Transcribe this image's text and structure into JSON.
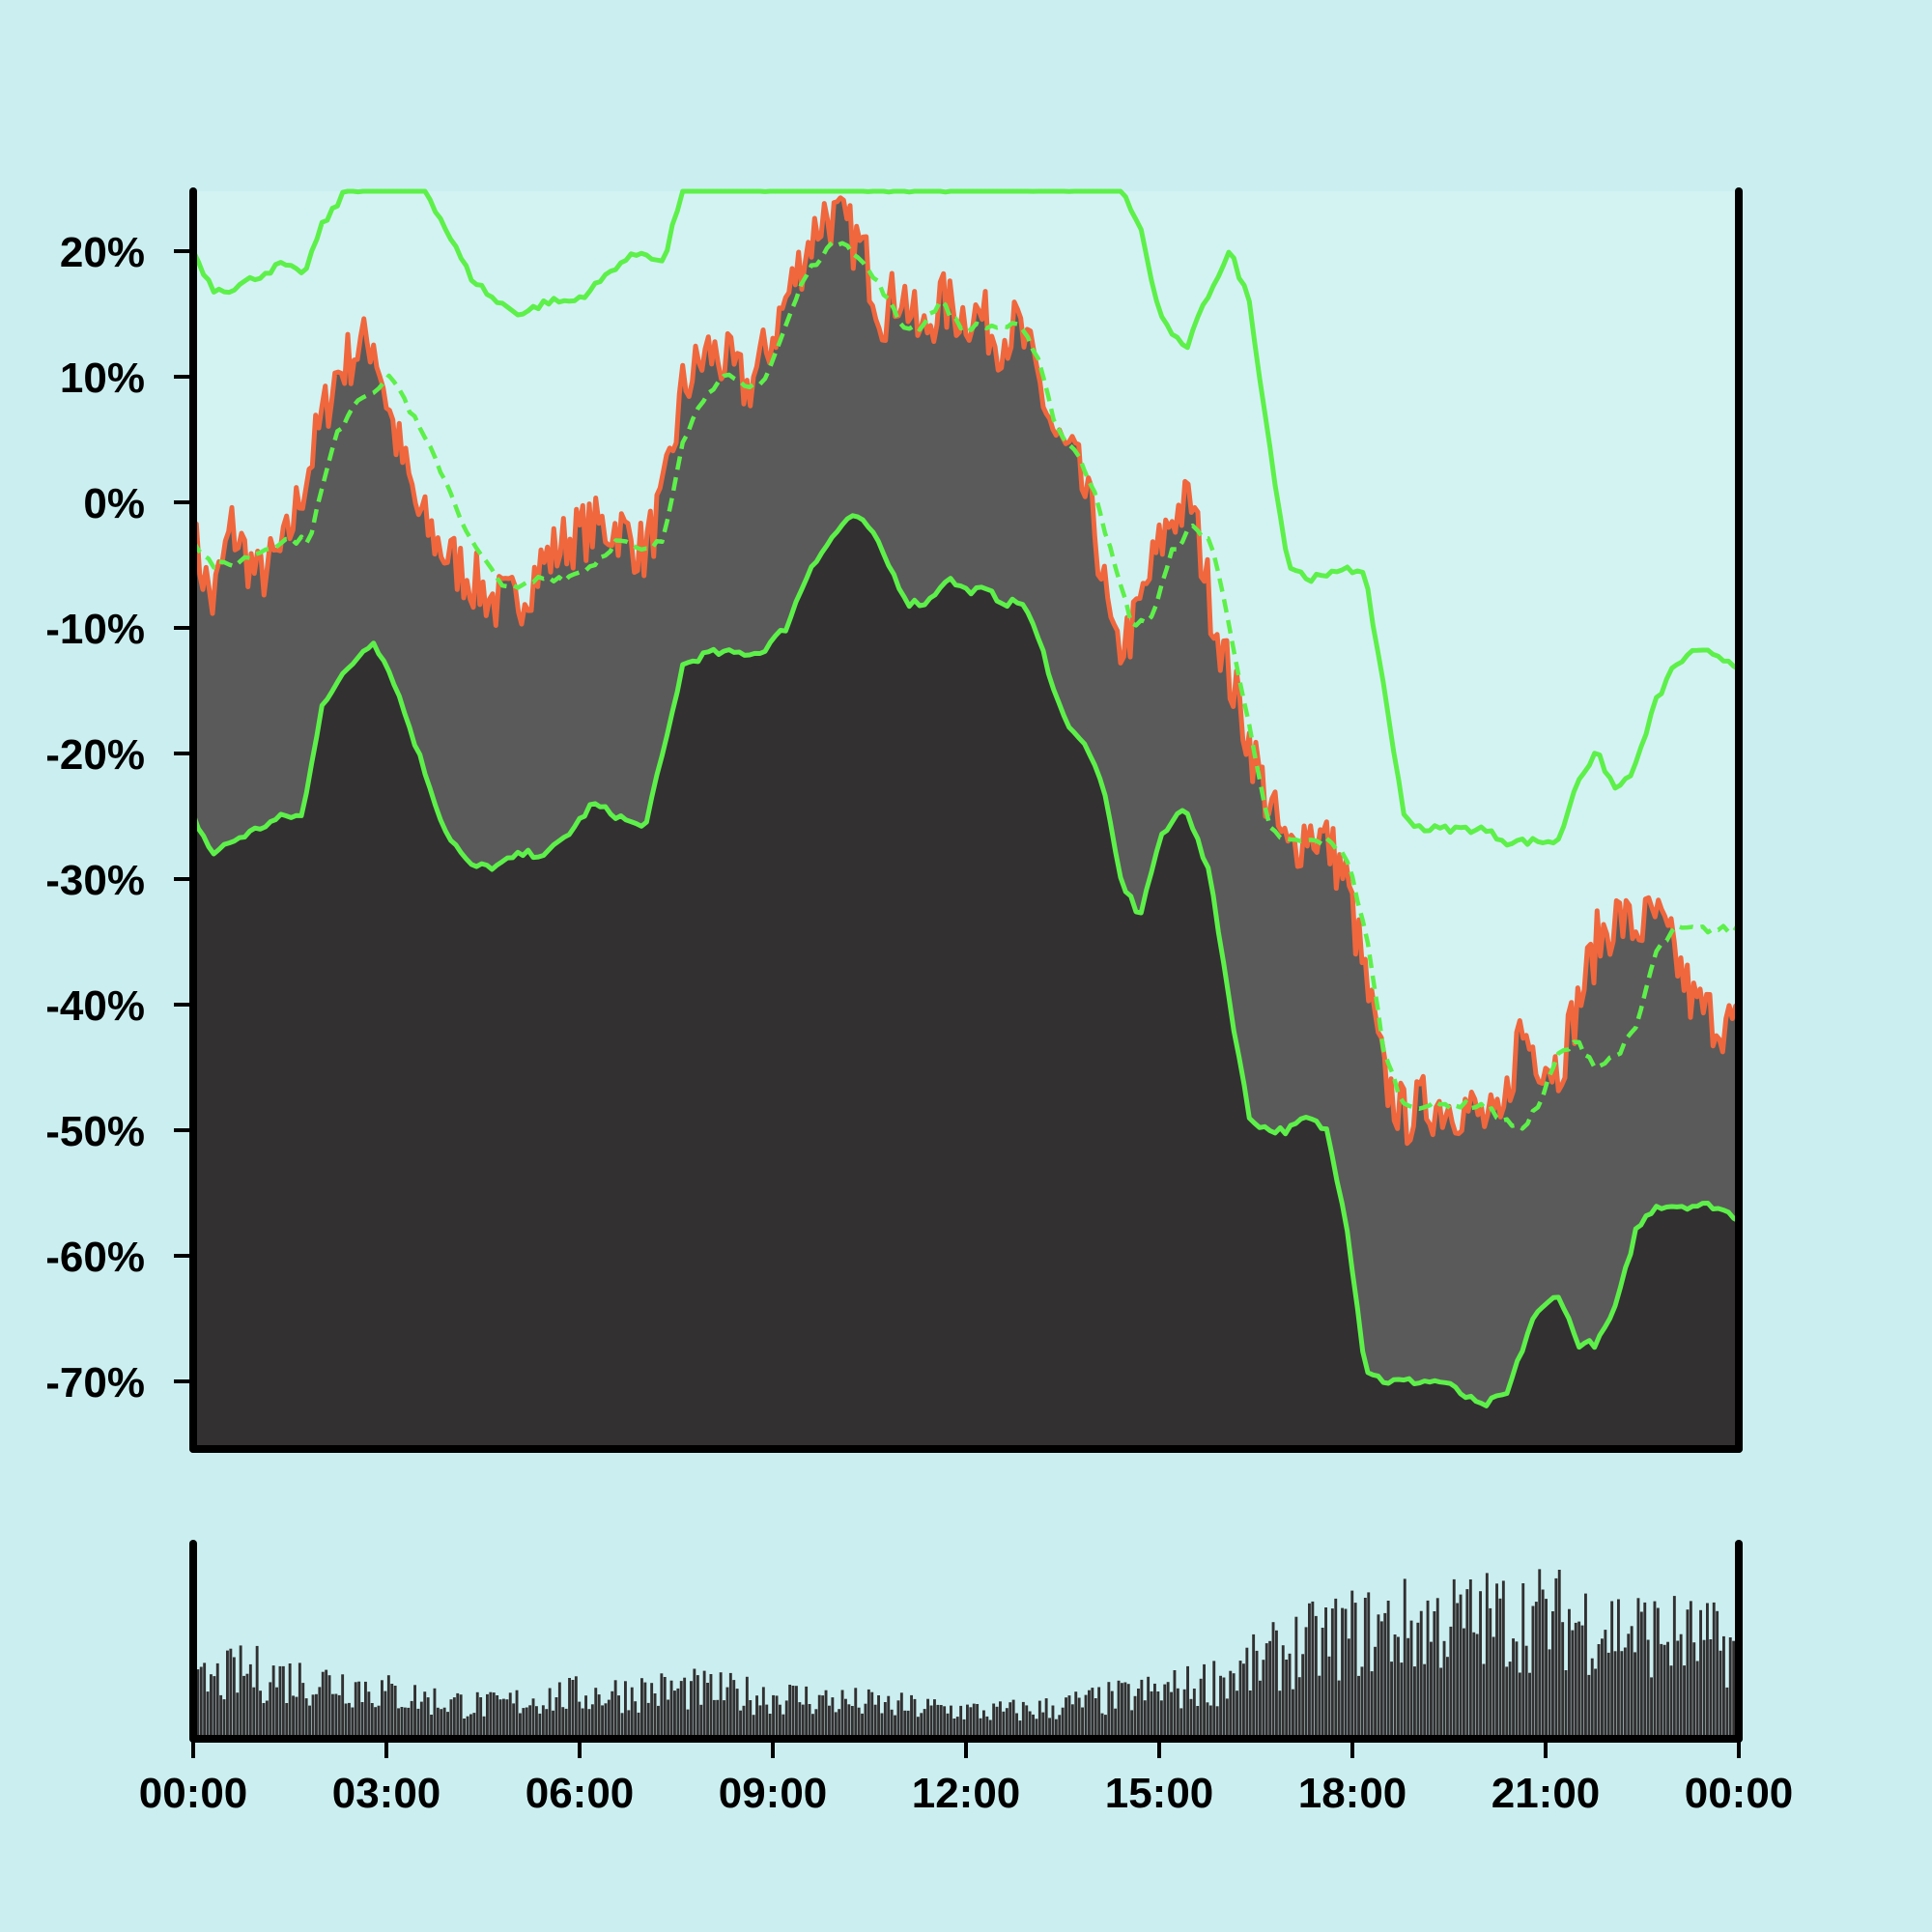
{
  "chart_data": {
    "type": "area",
    "title": "",
    "xlabel": "",
    "ylabel": "",
    "grid": false,
    "legend": "none",
    "y_ticks": [
      "20%",
      "10%",
      "0%",
      "-10%",
      "-20%",
      "-30%",
      "-40%",
      "-50%",
      "-60%",
      "-70%"
    ],
    "y_tick_values": [
      20,
      10,
      0,
      -10,
      -20,
      -30,
      -40,
      -50,
      -60,
      -70
    ],
    "x_ticks": [
      "00:00",
      "03:00",
      "06:00",
      "09:00",
      "12:00",
      "15:00",
      "18:00",
      "21:00",
      "00:00"
    ],
    "x_tick_hours": [
      0,
      3,
      6,
      9,
      12,
      15,
      18,
      21,
      24
    ],
    "xlim_hours": [
      0,
      24
    ],
    "ylim": [
      -75,
      25
    ],
    "colors": {
      "background": "#cbeff0",
      "plot_background": "#d3f3f3",
      "price_area": "#5a5a5a",
      "lower_area": "#323031",
      "price_edge": "#f0673d",
      "band_line": "#5ef04a",
      "axis": "#000000",
      "volume_bars": "#323031"
    },
    "series": [
      {
        "role": "price_area",
        "x": [
          0,
          0.3,
          0.6,
          1.0,
          1.4,
          1.8,
          2.2,
          2.5,
          2.8,
          3.1,
          3.5,
          3.9,
          4.3,
          4.7,
          5.0,
          5.4,
          5.8,
          6.2,
          6.6,
          7.0,
          7.3,
          7.6,
          8.0,
          8.3,
          8.6,
          8.9,
          9.2,
          9.5,
          9.8,
          10.1,
          10.4,
          10.7,
          11.0,
          11.3,
          11.6,
          11.9,
          12.2,
          12.5,
          12.8,
          13.1,
          13.4,
          13.7,
          14.0,
          14.3,
          14.6,
          14.9,
          15.2,
          15.5,
          15.8,
          16.1,
          16.4,
          16.7,
          17.0,
          17.3,
          17.6,
          17.9,
          18.2,
          18.5,
          18.8,
          19.1,
          19.4,
          19.7,
          20.0,
          20.3,
          20.6,
          20.9,
          21.2,
          21.5,
          21.8,
          22.1,
          22.4,
          22.7,
          23.0,
          23.3,
          23.6,
          24.0
        ],
        "values": [
          -3,
          -8,
          -2,
          -6,
          -4,
          3,
          10,
          12,
          13,
          6,
          -1,
          -4,
          -6,
          -8,
          -8,
          -5,
          -3,
          -2,
          -2,
          -4,
          0,
          9,
          12,
          11,
          9,
          12,
          16,
          20,
          23,
          22,
          20,
          15,
          17,
          13,
          16,
          15,
          15,
          13,
          14,
          10,
          5,
          3,
          -2,
          -12,
          -10,
          -5,
          -1,
          0,
          -8,
          -14,
          -19,
          -24,
          -28,
          -26,
          -27,
          -30,
          -38,
          -46,
          -49,
          -48,
          -48,
          -48,
          -49,
          -50,
          -42,
          -44,
          -45,
          -40,
          -35,
          -33,
          -34,
          -33,
          -36,
          -40,
          -41,
          -42
        ]
      },
      {
        "role": "upper_band",
        "x": [
          0,
          0.3,
          0.6,
          1.0,
          1.4,
          1.7,
          2.0,
          2.4,
          2.8,
          3.2,
          3.6,
          4.0,
          4.3,
          4.7,
          5.1,
          5.5,
          5.9,
          6.2,
          6.6,
          7.0,
          7.3,
          7.6,
          8.0,
          9.0,
          10.0,
          11.0,
          12.0,
          13.0,
          14.0,
          14.4,
          14.7,
          15.0,
          15.4,
          15.8,
          16.1,
          16.4,
          16.7,
          17.0,
          17.3,
          17.6,
          17.9,
          18.2,
          18.5,
          18.8,
          19.1,
          19.4,
          19.7,
          20.0,
          20.4,
          20.8,
          21.2,
          21.5,
          21.8,
          22.1,
          22.4,
          22.7,
          23.0,
          23.3,
          23.6,
          24.0
        ],
        "values": [
          20,
          17,
          17,
          18,
          19,
          18,
          22,
          25,
          25,
          25,
          25,
          21,
          18,
          16,
          15,
          16,
          16,
          17,
          19,
          20,
          19,
          25,
          25,
          25,
          25,
          25,
          25,
          25,
          25,
          25,
          22,
          15,
          12,
          17,
          20,
          16,
          5,
          -5,
          -6,
          -6,
          -5,
          -6,
          -15,
          -25,
          -26,
          -26,
          -26,
          -26,
          -27,
          -27,
          -27,
          -22,
          -20,
          -23,
          -21,
          -16,
          -13,
          -12,
          -12,
          -13
        ]
      },
      {
        "role": "middle_band_dashed",
        "x": [
          0,
          0.3,
          0.6,
          1.0,
          1.4,
          1.8,
          2.2,
          2.5,
          2.8,
          3.1,
          3.5,
          3.9,
          4.3,
          4.7,
          5.0,
          5.4,
          5.8,
          6.2,
          6.6,
          7.0,
          7.3,
          7.6,
          8.0,
          8.3,
          8.6,
          8.9,
          9.2,
          9.5,
          9.8,
          10.1,
          10.4,
          10.7,
          11.0,
          11.3,
          11.6,
          11.9,
          12.2,
          12.5,
          12.8,
          13.1,
          13.4,
          13.7,
          14.0,
          14.3,
          14.6,
          14.9,
          15.2,
          15.5,
          15.8,
          16.1,
          16.4,
          16.7,
          17.0,
          17.3,
          17.6,
          17.9,
          18.2,
          18.5,
          18.8,
          19.1,
          19.4,
          19.7,
          20.0,
          20.3,
          20.6,
          20.9,
          21.2,
          21.5,
          21.8,
          22.1,
          22.4,
          22.7,
          23.0,
          23.3,
          23.6,
          24.0
        ],
        "values": [
          -3,
          -5,
          -5,
          -4,
          -3,
          -3,
          5,
          8,
          9,
          10,
          6,
          2,
          -3,
          -6,
          -7,
          -6,
          -6,
          -5,
          -3,
          -4,
          -3,
          5,
          9,
          10,
          9,
          10,
          14,
          18,
          20,
          21,
          19,
          17,
          14,
          14,
          16,
          14,
          14,
          14,
          14,
          12,
          6,
          4,
          1,
          -5,
          -10,
          -9,
          -4,
          -2,
          -3,
          -10,
          -18,
          -26,
          -27,
          -27,
          -27,
          -28,
          -34,
          -44,
          -48,
          -48,
          -48,
          -48,
          -48,
          -49,
          -50,
          -48,
          -44,
          -43,
          -45,
          -44,
          -42,
          -36,
          -34,
          -34,
          -34,
          -34
        ]
      },
      {
        "role": "lower_band",
        "x": [
          0,
          0.3,
          0.6,
          1.0,
          1.4,
          1.7,
          2.0,
          2.3,
          2.6,
          2.8,
          3.1,
          3.5,
          3.9,
          4.3,
          4.7,
          5.1,
          5.5,
          5.9,
          6.2,
          6.6,
          7.0,
          7.3,
          7.6,
          8.0,
          8.4,
          8.8,
          9.2,
          9.6,
          9.9,
          10.2,
          10.5,
          10.8,
          11.1,
          11.4,
          11.7,
          12.0,
          12.3,
          12.6,
          12.9,
          13.2,
          13.5,
          13.8,
          14.1,
          14.4,
          14.7,
          15.0,
          15.4,
          15.8,
          16.1,
          16.4,
          16.7,
          17.0,
          17.3,
          17.6,
          17.9,
          18.2,
          18.5,
          18.8,
          19.1,
          19.4,
          19.7,
          20.0,
          20.4,
          20.8,
          21.2,
          21.5,
          21.8,
          22.1,
          22.4,
          22.7,
          23.0,
          23.3,
          23.6,
          24.0
        ],
        "values": [
          -25,
          -28,
          -27,
          -26,
          -25,
          -25,
          -16,
          -14,
          -12,
          -11,
          -14,
          -20,
          -26,
          -29,
          -29,
          -28,
          -28,
          -26,
          -24,
          -25,
          -26,
          -20,
          -13,
          -12,
          -12,
          -12,
          -10,
          -5,
          -3,
          -1,
          -2,
          -5,
          -8,
          -8,
          -6,
          -7,
          -7,
          -8,
          -8,
          -12,
          -17,
          -19,
          -22,
          -30,
          -33,
          -27,
          -24,
          -30,
          -40,
          -49,
          -50,
          -50,
          -49,
          -50,
          -57,
          -69,
          -70,
          -70,
          -70,
          -70,
          -71,
          -72,
          -71,
          -65,
          -63,
          -67,
          -67,
          -64,
          -58,
          -56,
          -56,
          -56,
          -56,
          -57
        ]
      }
    ],
    "volume": {
      "x_hours_start": 0,
      "x_hours_end": 24,
      "levels_relative": [
        0.35,
        0.45,
        0.4,
        0.38,
        0.3,
        0.25,
        0.22,
        0.28,
        0.3,
        0.32,
        0.33,
        0.3,
        0.28,
        0.25,
        0.22,
        0.2,
        0.18,
        0.2,
        0.25,
        0.3,
        0.35,
        0.45,
        0.6,
        0.7,
        0.75,
        0.78,
        0.8,
        0.82,
        0.78,
        0.72,
        0.68,
        0.6
      ]
    }
  }
}
